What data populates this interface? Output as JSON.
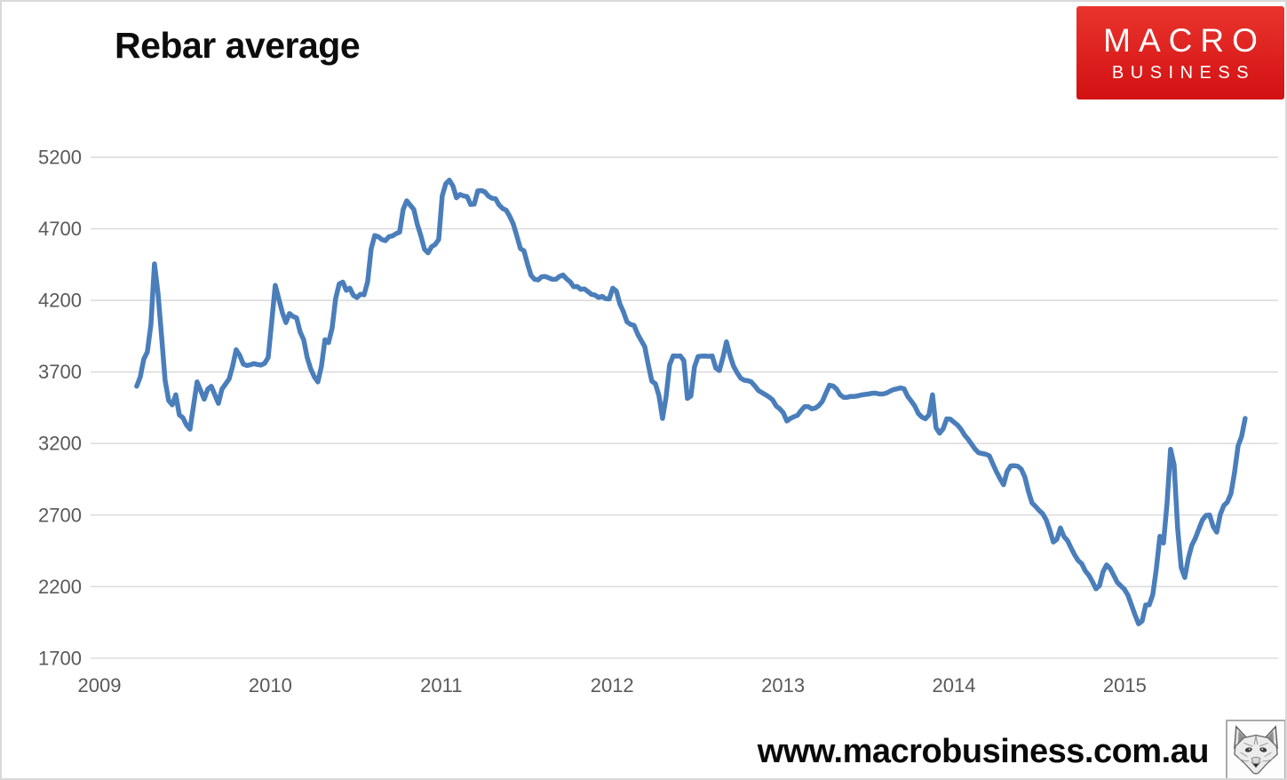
{
  "header": {
    "title": "Rebar average"
  },
  "logo": {
    "line1": "MACRO",
    "line2": "BUSINESS",
    "bg_top_color": "#ea342d",
    "bg_bottom_color": "#d21113",
    "text_color": "#ffffff"
  },
  "footer": {
    "url": "www.macrobusiness.com.au",
    "fox_icon": "fox-sketch-icon"
  },
  "chart_data": {
    "type": "line",
    "title": "Rebar average",
    "xlabel": "",
    "ylabel": "",
    "grid": "horizontal",
    "legend": "none",
    "gridline_color": "#d9d9d9",
    "tick_color": "#595959",
    "x_ticks": [
      2009,
      2010,
      2011,
      2012,
      2013,
      2014,
      2015
    ],
    "y_ticks": [
      1700,
      2200,
      2700,
      3200,
      3700,
      4200,
      4700,
      5200
    ],
    "ylim": [
      1700,
      5200
    ],
    "xlim": [
      2008.95,
      2015.95
    ],
    "series": [
      {
        "name": "Rebar average",
        "color": "#4a7ebb",
        "x_start_year": 2009.218,
        "x_step_years": 0.02079,
        "values": [
          3600,
          3665,
          3790,
          3840,
          4030,
          4455,
          4250,
          3950,
          3640,
          3500,
          3470,
          3540,
          3400,
          3380,
          3330,
          3300,
          3465,
          3630,
          3570,
          3510,
          3580,
          3600,
          3540,
          3480,
          3580,
          3615,
          3650,
          3740,
          3855,
          3815,
          3755,
          3745,
          3750,
          3758,
          3752,
          3748,
          3760,
          3800,
          4050,
          4305,
          4210,
          4115,
          4045,
          4108,
          4088,
          4078,
          3980,
          3925,
          3800,
          3720,
          3665,
          3630,
          3740,
          3925,
          3905,
          4005,
          4213,
          4315,
          4328,
          4270,
          4285,
          4235,
          4220,
          4243,
          4239,
          4330,
          4560,
          4653,
          4645,
          4625,
          4617,
          4645,
          4650,
          4666,
          4677,
          4835,
          4896,
          4865,
          4835,
          4730,
          4650,
          4557,
          4532,
          4575,
          4590,
          4625,
          4930,
          5015,
          5040,
          5000,
          4917,
          4940,
          4930,
          4925,
          4870,
          4872,
          4965,
          4967,
          4958,
          4928,
          4913,
          4910,
          4867,
          4842,
          4830,
          4787,
          4733,
          4650,
          4562,
          4547,
          4455,
          4375,
          4347,
          4343,
          4365,
          4367,
          4357,
          4347,
          4347,
          4367,
          4377,
          4350,
          4330,
          4295,
          4297,
          4277,
          4280,
          4262,
          4242,
          4237,
          4220,
          4228,
          4212,
          4210,
          4285,
          4265,
          4175,
          4120,
          4050,
          4032,
          4025,
          3965,
          3920,
          3877,
          3750,
          3635,
          3617,
          3535,
          3375,
          3525,
          3750,
          3812,
          3810,
          3812,
          3780,
          3515,
          3532,
          3735,
          3807,
          3810,
          3811,
          3809,
          3811,
          3727,
          3710,
          3800,
          3910,
          3815,
          3740,
          3695,
          3657,
          3642,
          3639,
          3630,
          3602,
          3570,
          3555,
          3540,
          3525,
          3505,
          3462,
          3442,
          3415,
          3357,
          3375,
          3387,
          3397,
          3430,
          3458,
          3458,
          3442,
          3447,
          3465,
          3495,
          3552,
          3607,
          3602,
          3580,
          3540,
          3522,
          3523,
          3529,
          3529,
          3533,
          3539,
          3543,
          3546,
          3551,
          3552,
          3546,
          3546,
          3552,
          3565,
          3576,
          3582,
          3589,
          3582,
          3530,
          3497,
          3462,
          3410,
          3385,
          3373,
          3400,
          3540,
          3310,
          3272,
          3304,
          3372,
          3370,
          3350,
          3330,
          3300,
          3260,
          3230,
          3195,
          3160,
          3135,
          3130,
          3125,
          3114,
          3057,
          3002,
          2955,
          2912,
          3005,
          3043,
          3045,
          3041,
          3020,
          2965,
          2865,
          2785,
          2760,
          2732,
          2710,
          2667,
          2595,
          2512,
          2530,
          2610,
          2550,
          2521,
          2470,
          2422,
          2382,
          2360,
          2310,
          2280,
          2235,
          2185,
          2207,
          2305,
          2352,
          2327,
          2280,
          2230,
          2205,
          2182,
          2140,
          2072,
          2002,
          1940,
          1960,
          2072,
          2073,
          2145,
          2325,
          2552,
          2505,
          2779,
          3160,
          3050,
          2605,
          2333,
          2264,
          2397,
          2490,
          2540,
          2605,
          2667,
          2698,
          2700,
          2620,
          2581,
          2705,
          2767,
          2791,
          2850,
          2996,
          3182,
          3250,
          3375
        ]
      }
    ]
  }
}
